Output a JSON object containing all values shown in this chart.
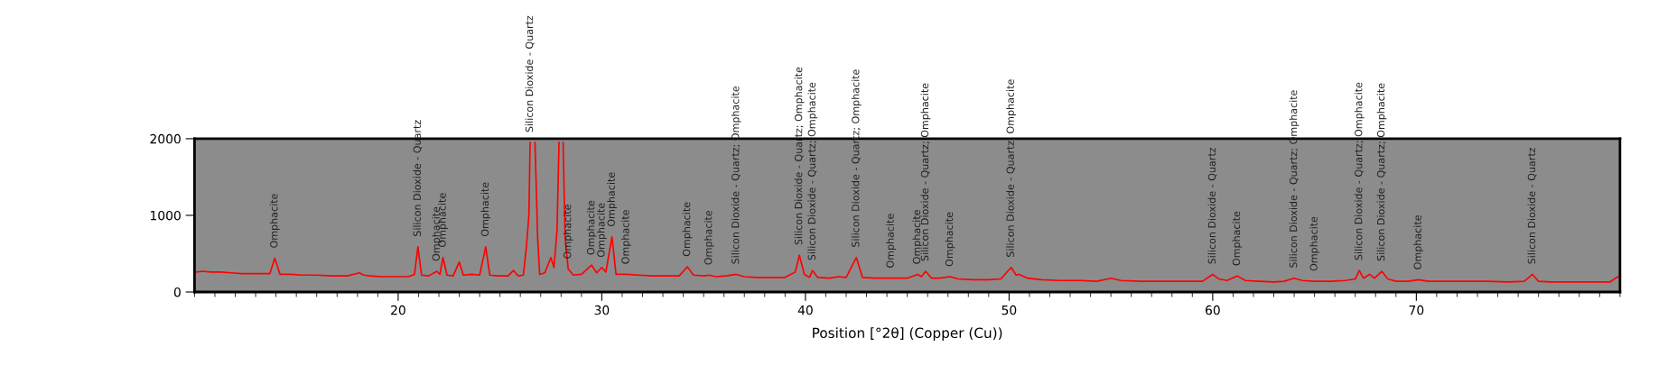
{
  "chart_data": {
    "type": "line",
    "xlabel": "Position [°2θ] (Copper (Cu))",
    "xlim": [
      10,
      80
    ],
    "xticks": [
      20,
      30,
      40,
      50,
      60,
      70
    ],
    "ylim": [
      0,
      2000
    ],
    "yticks": [
      0,
      1000,
      2000
    ],
    "grid": false,
    "marker": "none",
    "line_style": "solid",
    "series": [
      {
        "color": "#ff0000",
        "x": [
          10.1,
          10.4,
          10.8,
          11.3,
          11.8,
          12.3,
          12.8,
          13.3,
          13.7,
          13.94,
          14.2,
          14.7,
          15.3,
          16.0,
          16.8,
          17.5,
          18.1,
          18.3,
          18.6,
          19.2,
          19.8,
          20.5,
          20.8,
          20.97,
          21.15,
          21.5,
          21.9,
          22.05,
          22.2,
          22.4,
          22.7,
          23.0,
          23.2,
          23.6,
          24.0,
          24.3,
          24.5,
          24.9,
          25.4,
          25.66,
          25.9,
          26.15,
          26.3,
          26.42,
          26.48,
          26.6,
          26.72,
          26.85,
          26.95,
          27.2,
          27.5,
          27.65,
          27.8,
          27.9,
          28.0,
          28.1,
          28.2,
          28.35,
          28.6,
          29.0,
          29.5,
          29.75,
          30.0,
          30.2,
          30.5,
          30.7,
          31.2,
          31.8,
          32.5,
          33.2,
          33.8,
          34.2,
          34.5,
          35.0,
          35.27,
          35.6,
          36.1,
          36.6,
          37.0,
          37.6,
          38.3,
          39.0,
          39.5,
          39.7,
          39.95,
          40.2,
          40.35,
          40.6,
          41.2,
          41.6,
          42.0,
          42.5,
          42.8,
          43.4,
          44.2,
          45.0,
          45.5,
          45.7,
          45.9,
          46.2,
          46.6,
          47.1,
          47.5,
          48.2,
          49.0,
          49.6,
          50.1,
          50.35,
          50.5,
          50.9,
          51.6,
          52.5,
          53.5,
          54.3,
          55.0,
          55.5,
          56.5,
          57.5,
          58.5,
          59.5,
          60.0,
          60.3,
          60.7,
          61.2,
          61.6,
          62.3,
          63.0,
          63.5,
          64.0,
          64.4,
          65.0,
          65.8,
          66.5,
          67.0,
          67.2,
          67.4,
          67.7,
          67.95,
          68.3,
          68.6,
          69.0,
          69.6,
          70.1,
          70.6,
          71.5,
          72.5,
          73.5,
          74.5,
          75.3,
          75.7,
          76.0,
          76.6,
          77.5,
          78.5,
          79.5,
          79.9
        ],
        "values": [
          260,
          270,
          260,
          260,
          250,
          240,
          240,
          240,
          240,
          440,
          230,
          230,
          220,
          220,
          210,
          210,
          250,
          220,
          210,
          200,
          200,
          200,
          230,
          590,
          220,
          210,
          270,
          230,
          450,
          220,
          210,
          390,
          220,
          230,
          220,
          590,
          220,
          210,
          210,
          280,
          210,
          220,
          600,
          1000,
          1950,
          null,
          1950,
          700,
          230,
          250,
          450,
          320,
          800,
          1950,
          null,
          1950,
          700,
          300,
          220,
          230,
          350,
          250,
          320,
          260,
          720,
          230,
          230,
          220,
          210,
          210,
          210,
          330,
          220,
          210,
          220,
          200,
          210,
          230,
          200,
          190,
          190,
          190,
          260,
          480,
          230,
          190,
          280,
          190,
          180,
          200,
          190,
          450,
          190,
          180,
          180,
          180,
          230,
          200,
          270,
          180,
          180,
          200,
          170,
          160,
          160,
          170,
          320,
          220,
          230,
          180,
          160,
          150,
          150,
          140,
          180,
          150,
          140,
          140,
          140,
          140,
          230,
          170,
          150,
          210,
          150,
          140,
          130,
          140,
          180,
          150,
          140,
          140,
          150,
          170,
          280,
          180,
          230,
          180,
          270,
          170,
          140,
          140,
          160,
          140,
          140,
          140,
          140,
          130,
          140,
          230,
          140,
          130,
          130,
          130,
          130,
          200
        ]
      }
    ],
    "annotations": [
      {
        "text": "Omphacite",
        "x": 13.94,
        "y": 440
      },
      {
        "text": "Silicon Dioxide - Quartz",
        "x": 20.97,
        "y": 590
      },
      {
        "text": "Omphacite",
        "x": 21.9,
        "y": 270
      },
      {
        "text": "Omphacite",
        "x": 22.2,
        "y": 450
      },
      {
        "text": "Omphacite",
        "x": 24.3,
        "y": 590
      },
      {
        "text": "Silicon Dioxide - Quartz",
        "x": 26.48,
        "y": 1950
      },
      {
        "text": "Omphacite",
        "x": 28.35,
        "y": 300
      },
      {
        "text": "Omphacite",
        "x": 29.5,
        "y": 350
      },
      {
        "text": "Omphacite",
        "x": 30.0,
        "y": 320
      },
      {
        "text": "Omphacite",
        "x": 30.5,
        "y": 720
      },
      {
        "text": "Omphacite",
        "x": 31.2,
        "y": 230
      },
      {
        "text": "Omphacite",
        "x": 34.2,
        "y": 330
      },
      {
        "text": "Omphacite",
        "x": 35.27,
        "y": 220
      },
      {
        "text": "Silicon Dioxide - Quartz; Omphacite",
        "x": 36.6,
        "y": 230
      },
      {
        "text": "Silicon Dioxide - Quartz; Omphacite",
        "x": 39.7,
        "y": 480
      },
      {
        "text": "Silicon Dioxide - Quartz; Omphacite",
        "x": 40.35,
        "y": 280
      },
      {
        "text": "Silicon Dioxide - Quartz; Omphacite",
        "x": 42.5,
        "y": 450
      },
      {
        "text": "Omphacite",
        "x": 44.2,
        "y": 180
      },
      {
        "text": "Omphacite",
        "x": 45.5,
        "y": 230
      },
      {
        "text": "Silicon Dioxide - Quartz; Omphacite",
        "x": 45.9,
        "y": 270
      },
      {
        "text": "Omphacite",
        "x": 47.1,
        "y": 200
      },
      {
        "text": "Silicon Dioxide - Quartz; Omphacite",
        "x": 50.1,
        "y": 320
      },
      {
        "text": "Silicon Dioxide - Quartz",
        "x": 60.0,
        "y": 230
      },
      {
        "text": "Omphacite",
        "x": 61.2,
        "y": 210
      },
      {
        "text": "Silicon Dioxide - Quartz; Omphacite",
        "x": 64.0,
        "y": 180
      },
      {
        "text": "Omphacite",
        "x": 65.0,
        "y": 140
      },
      {
        "text": "Silicon Dioxide - Quartz; Omphacite",
        "x": 67.2,
        "y": 280
      },
      {
        "text": "Silicon Dioxide - Quartz; Omphacite",
        "x": 68.3,
        "y": 270
      },
      {
        "text": "Omphacite",
        "x": 70.1,
        "y": 160
      },
      {
        "text": "Silicon Dioxide - Quartz",
        "x": 75.7,
        "y": 230
      }
    ]
  }
}
